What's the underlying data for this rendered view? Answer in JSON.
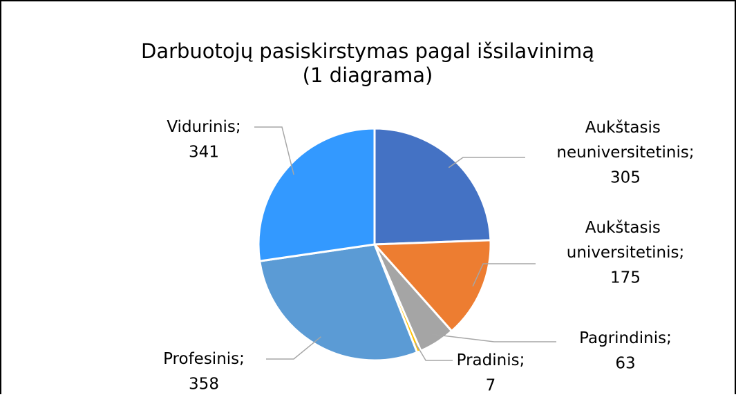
{
  "chart_data": {
    "type": "pie",
    "title": "Darbuotojų pasiskirstymas pagal išsilavinimą",
    "subtitle": "(1 diagrama)",
    "categories": [
      "Aukštasis neuniversitetinis",
      "Aukštasis universitetinis",
      "Pagrindinis",
      "Pradinis",
      "Profesinis",
      "Vidurinis"
    ],
    "values": [
      305,
      175,
      63,
      7,
      358,
      341
    ],
    "colors": [
      "#4472c4",
      "#ed7d31",
      "#a5a5a5",
      "#ffc000",
      "#5b9bd5",
      "#3399ff"
    ],
    "label_separator": ";"
  }
}
